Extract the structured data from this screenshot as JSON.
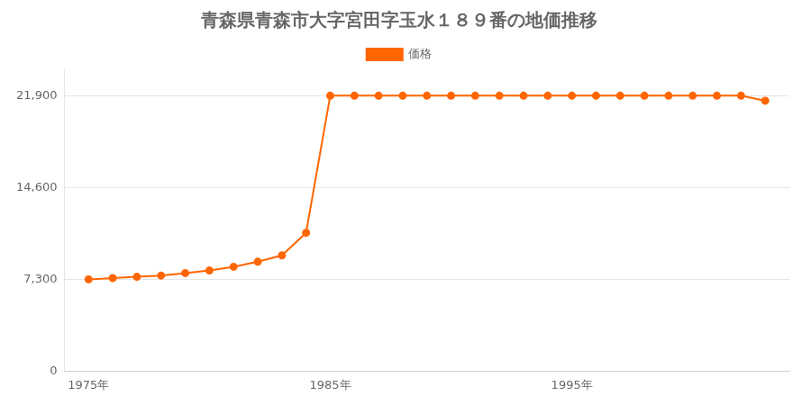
{
  "chart_data": {
    "type": "line",
    "title": "青森県青森市大字宮田字玉水１８９番の地価推移",
    "x": [
      1975,
      1976,
      1977,
      1978,
      1979,
      1980,
      1981,
      1982,
      1983,
      1984,
      1985,
      1986,
      1987,
      1988,
      1989,
      1990,
      1991,
      1992,
      1993,
      1994,
      1995,
      1996,
      1997,
      1998,
      1999,
      2000,
      2001,
      2002,
      2003
    ],
    "series": [
      {
        "name": "価格",
        "color": "#ff6600",
        "marker": "circle",
        "line_style": "solid",
        "values": [
          7300,
          7400,
          7500,
          7600,
          7800,
          8000,
          8300,
          8700,
          9200,
          11000,
          21900,
          21900,
          21900,
          21900,
          21900,
          21900,
          21900,
          21900,
          21900,
          21900,
          21900,
          21900,
          21900,
          21900,
          21900,
          21900,
          21900,
          21900,
          21500
        ]
      }
    ],
    "xlim": [
      1974,
      2004
    ],
    "xticks": [
      {
        "value": 1975,
        "label": "1975年"
      },
      {
        "value": 1985,
        "label": "1985年"
      },
      {
        "value": 1995,
        "label": "1995年"
      }
    ],
    "ylim": [
      0,
      24000
    ],
    "yticks": [
      0,
      {
        "value": 7300,
        "label": "7,300"
      },
      {
        "value": 14600,
        "label": "14,600"
      },
      {
        "value": 21900,
        "label": "21,900"
      }
    ],
    "grid": "y",
    "legend": "top"
  }
}
